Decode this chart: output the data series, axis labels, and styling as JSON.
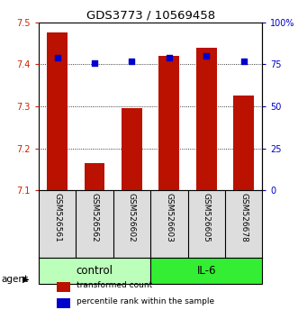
{
  "title": "GDS3773 / 10569458",
  "categories": [
    "GSM526561",
    "GSM526562",
    "GSM526602",
    "GSM526603",
    "GSM526605",
    "GSM526678"
  ],
  "bar_values": [
    7.475,
    7.165,
    7.295,
    7.42,
    7.44,
    7.325
  ],
  "percentile_values": [
    79,
    76,
    77,
    79,
    80,
    77
  ],
  "ymin": 7.1,
  "ymax": 7.5,
  "yticks": [
    7.1,
    7.2,
    7.3,
    7.4,
    7.5
  ],
  "y2ticks": [
    0,
    25,
    50,
    75,
    100
  ],
  "y2tick_labels": [
    "0",
    "25",
    "50",
    "75",
    "100%"
  ],
  "bar_color": "#bb1100",
  "dot_color": "#0000cc",
  "left_label_color": "#cc2200",
  "right_label_color": "#0000cc",
  "group_labels": [
    "control",
    "IL-6"
  ],
  "group_colors": [
    "#bbffbb",
    "#33ee33"
  ],
  "agent_label": "agent",
  "legend_items": [
    "transformed count",
    "percentile rank within the sample"
  ],
  "legend_colors": [
    "#bb1100",
    "#0000cc"
  ],
  "bar_width": 0.55,
  "figwidth": 3.31,
  "figheight": 3.54,
  "dpi": 100
}
